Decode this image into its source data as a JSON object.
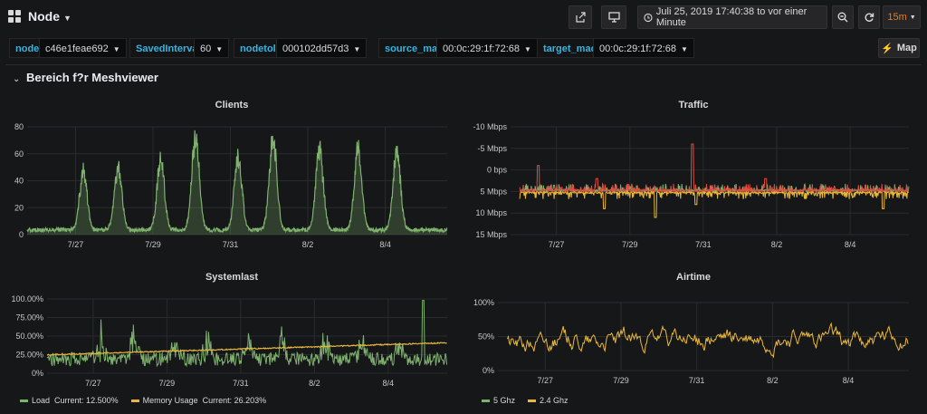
{
  "header": {
    "title": "Node",
    "time_range": "Juli 25, 2019 17:40:38 to vor einer Minute",
    "refresh_interval": "15m"
  },
  "variables": [
    {
      "label": "node",
      "value": "c46e1feae692"
    },
    {
      "label": "SavedInterval",
      "value": "60"
    },
    {
      "label": "nodetolink",
      "value": "000102dd57d3"
    },
    {
      "label": "source_mac",
      "value": "00:0c:29:1f:72:68"
    },
    {
      "label": "target_mac",
      "value": "00:0c:29:1f:72:68"
    }
  ],
  "map_button": "Map",
  "row": {
    "title": "Bereich f?r Meshviewer"
  },
  "x_ticks": [
    "7/27",
    "7/29",
    "7/31",
    "8/2",
    "8/4"
  ],
  "colors": {
    "green": "#7eb26d",
    "yellow": "#eab839",
    "red": "#e24d42",
    "accent": "#33b5e5",
    "refresh": "#eb7b18"
  },
  "panels": {
    "clients": {
      "title": "Clients",
      "chart_data": {
        "type": "area",
        "ylim": [
          0,
          80
        ],
        "yticks": [
          "0",
          "20",
          "40",
          "60",
          "80"
        ],
        "series": [
          {
            "peaks_by_day": [
              [
                7.2,
                43
              ],
              [
                8.1,
                45
              ],
              [
                9.2,
                51
              ],
              [
                10.1,
                70
              ],
              [
                11.2,
                54
              ],
              [
                12.1,
                67
              ],
              [
                13.3,
                59
              ],
              [
                14.3,
                60
              ],
              [
                15.3,
                57
              ]
            ]
          }
        ]
      }
    },
    "traffic": {
      "title": "Traffic",
      "chart_data": {
        "type": "line",
        "ylim": [
          -10,
          15
        ],
        "yticks": [
          "15 Mbps",
          "10 Mbps",
          "5 Mbps",
          "0 bps",
          "-5 Mbps",
          "-10 Mbps"
        ],
        "series": [
          {
            "spikes": [
              [
                6.5,
                6
              ],
              [
                10.7,
                11
              ],
              [
                8.1,
                3
              ],
              [
                12.7,
                3
              ]
            ]
          },
          {
            "spikes": [
              [
                9.7,
                -6
              ],
              [
                8.3,
                -4
              ],
              [
                10.8,
                -3
              ],
              [
                15.9,
                -4
              ]
            ]
          }
        ]
      }
    },
    "systemlast": {
      "title": "Systemlast",
      "chart_data": {
        "type": "line",
        "ylim": [
          0,
          100
        ],
        "yticks": [
          "0%",
          "25.00%",
          "50.00%",
          "75.00%",
          "100.00%"
        ],
        "series": [
          {
            "name": "Load",
            "current": "Current: 12.500%"
          },
          {
            "name": "Memory Usage",
            "current": "Current: 26.203%"
          }
        ]
      }
    },
    "airtime": {
      "title": "Airtime",
      "chart_data": {
        "type": "line",
        "ylim": [
          0,
          100
        ],
        "yticks": [
          "0%",
          "50%",
          "100%"
        ],
        "series": [
          {
            "name": "5 Ghz"
          },
          {
            "name": "2.4 Ghz"
          }
        ]
      }
    }
  }
}
